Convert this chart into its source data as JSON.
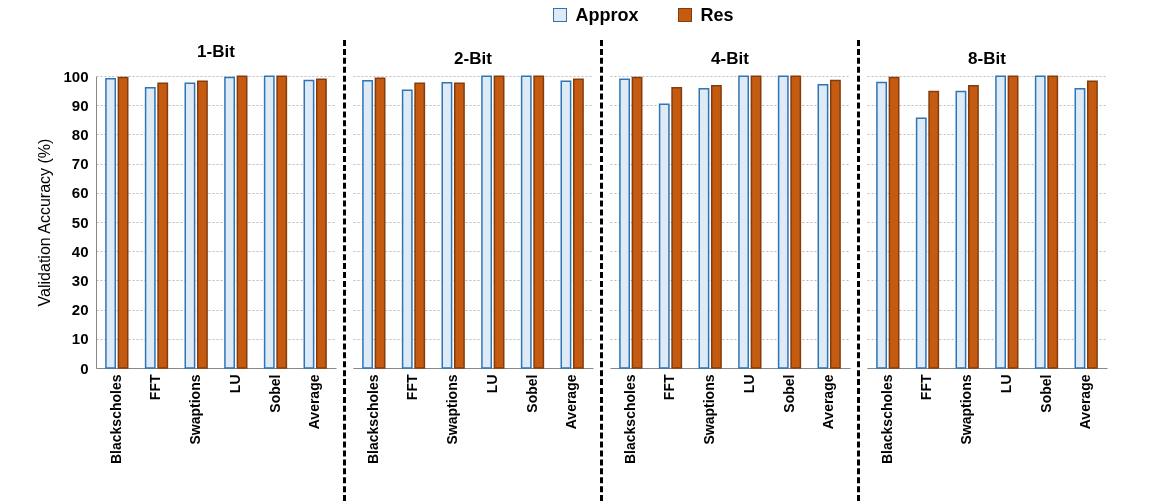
{
  "chart_data": [
    {
      "type": "bar",
      "title": "1-Bit",
      "ylabel": "Validation Accuracy (%)",
      "categories": [
        "Blackscholes",
        "FFT",
        "Swaptions",
        "LU",
        "Sobel",
        "Average"
      ],
      "ylim": [
        0,
        100
      ],
      "yticks": [
        0,
        10,
        20,
        30,
        40,
        50,
        60,
        70,
        80,
        90,
        100
      ],
      "grid": "y",
      "legend": "top",
      "series": [
        {
          "name": "Approx",
          "color": "#deebf7",
          "values": [
            99.1,
            96.0,
            97.5,
            99.5,
            99.9,
            98.5
          ]
        },
        {
          "name": "Res",
          "color": "#c55a11",
          "values": [
            99.5,
            97.5,
            98.2,
            99.9,
            99.9,
            98.9
          ]
        }
      ]
    },
    {
      "type": "bar",
      "title": "2-Bit",
      "categories": [
        "Blackscholes",
        "FFT",
        "Swaptions",
        "LU",
        "Sobel",
        "Average"
      ],
      "ylim": [
        0,
        100
      ],
      "yticks": [
        0,
        10,
        20,
        30,
        40,
        50,
        60,
        70,
        80,
        90,
        100
      ],
      "grid": "y",
      "tick_labels": "x",
      "series": [
        {
          "color": "#deebf7",
          "values": [
            98.4,
            95.1,
            97.7,
            99.9,
            99.9,
            98.2
          ]
        },
        {
          "color": "#c55a11",
          "values": [
            99.2,
            97.5,
            97.5,
            99.9,
            99.9,
            98.9
          ]
        }
      ]
    },
    {
      "type": "bar",
      "title": "4-Bit",
      "categories": [
        "Blackscholes",
        "FFT",
        "Swaptions",
        "LU",
        "Sobel",
        "Average"
      ],
      "ylim": [
        0,
        100
      ],
      "yticks": [
        0,
        10,
        20,
        30,
        40,
        50,
        60,
        70,
        80,
        90,
        100
      ],
      "grid": "y",
      "tick_labels": "x",
      "series": [
        {
          "color": "#deebf7",
          "values": [
            98.9,
            90.3,
            95.6,
            99.9,
            99.9,
            97.0
          ]
        },
        {
          "color": "#c55a11",
          "values": [
            99.5,
            96.0,
            96.7,
            99.9,
            99.9,
            98.5
          ]
        }
      ]
    },
    {
      "type": "bar",
      "title": "8-Bit",
      "categories": [
        "Blackscholes",
        "FFT",
        "Swaptions",
        "LU",
        "Sobel",
        "Average"
      ],
      "ylim": [
        0,
        100
      ],
      "yticks": [
        0,
        10,
        20,
        30,
        40,
        50,
        60,
        70,
        80,
        90,
        100
      ],
      "grid": "y",
      "tick_labels": "x",
      "series": [
        {
          "color": "#deebf7",
          "values": [
            97.8,
            85.5,
            94.7,
            99.9,
            99.9,
            95.6
          ]
        },
        {
          "color": "#c55a11",
          "values": [
            99.5,
            94.7,
            96.7,
            99.9,
            99.9,
            98.2
          ]
        }
      ]
    }
  ]
}
